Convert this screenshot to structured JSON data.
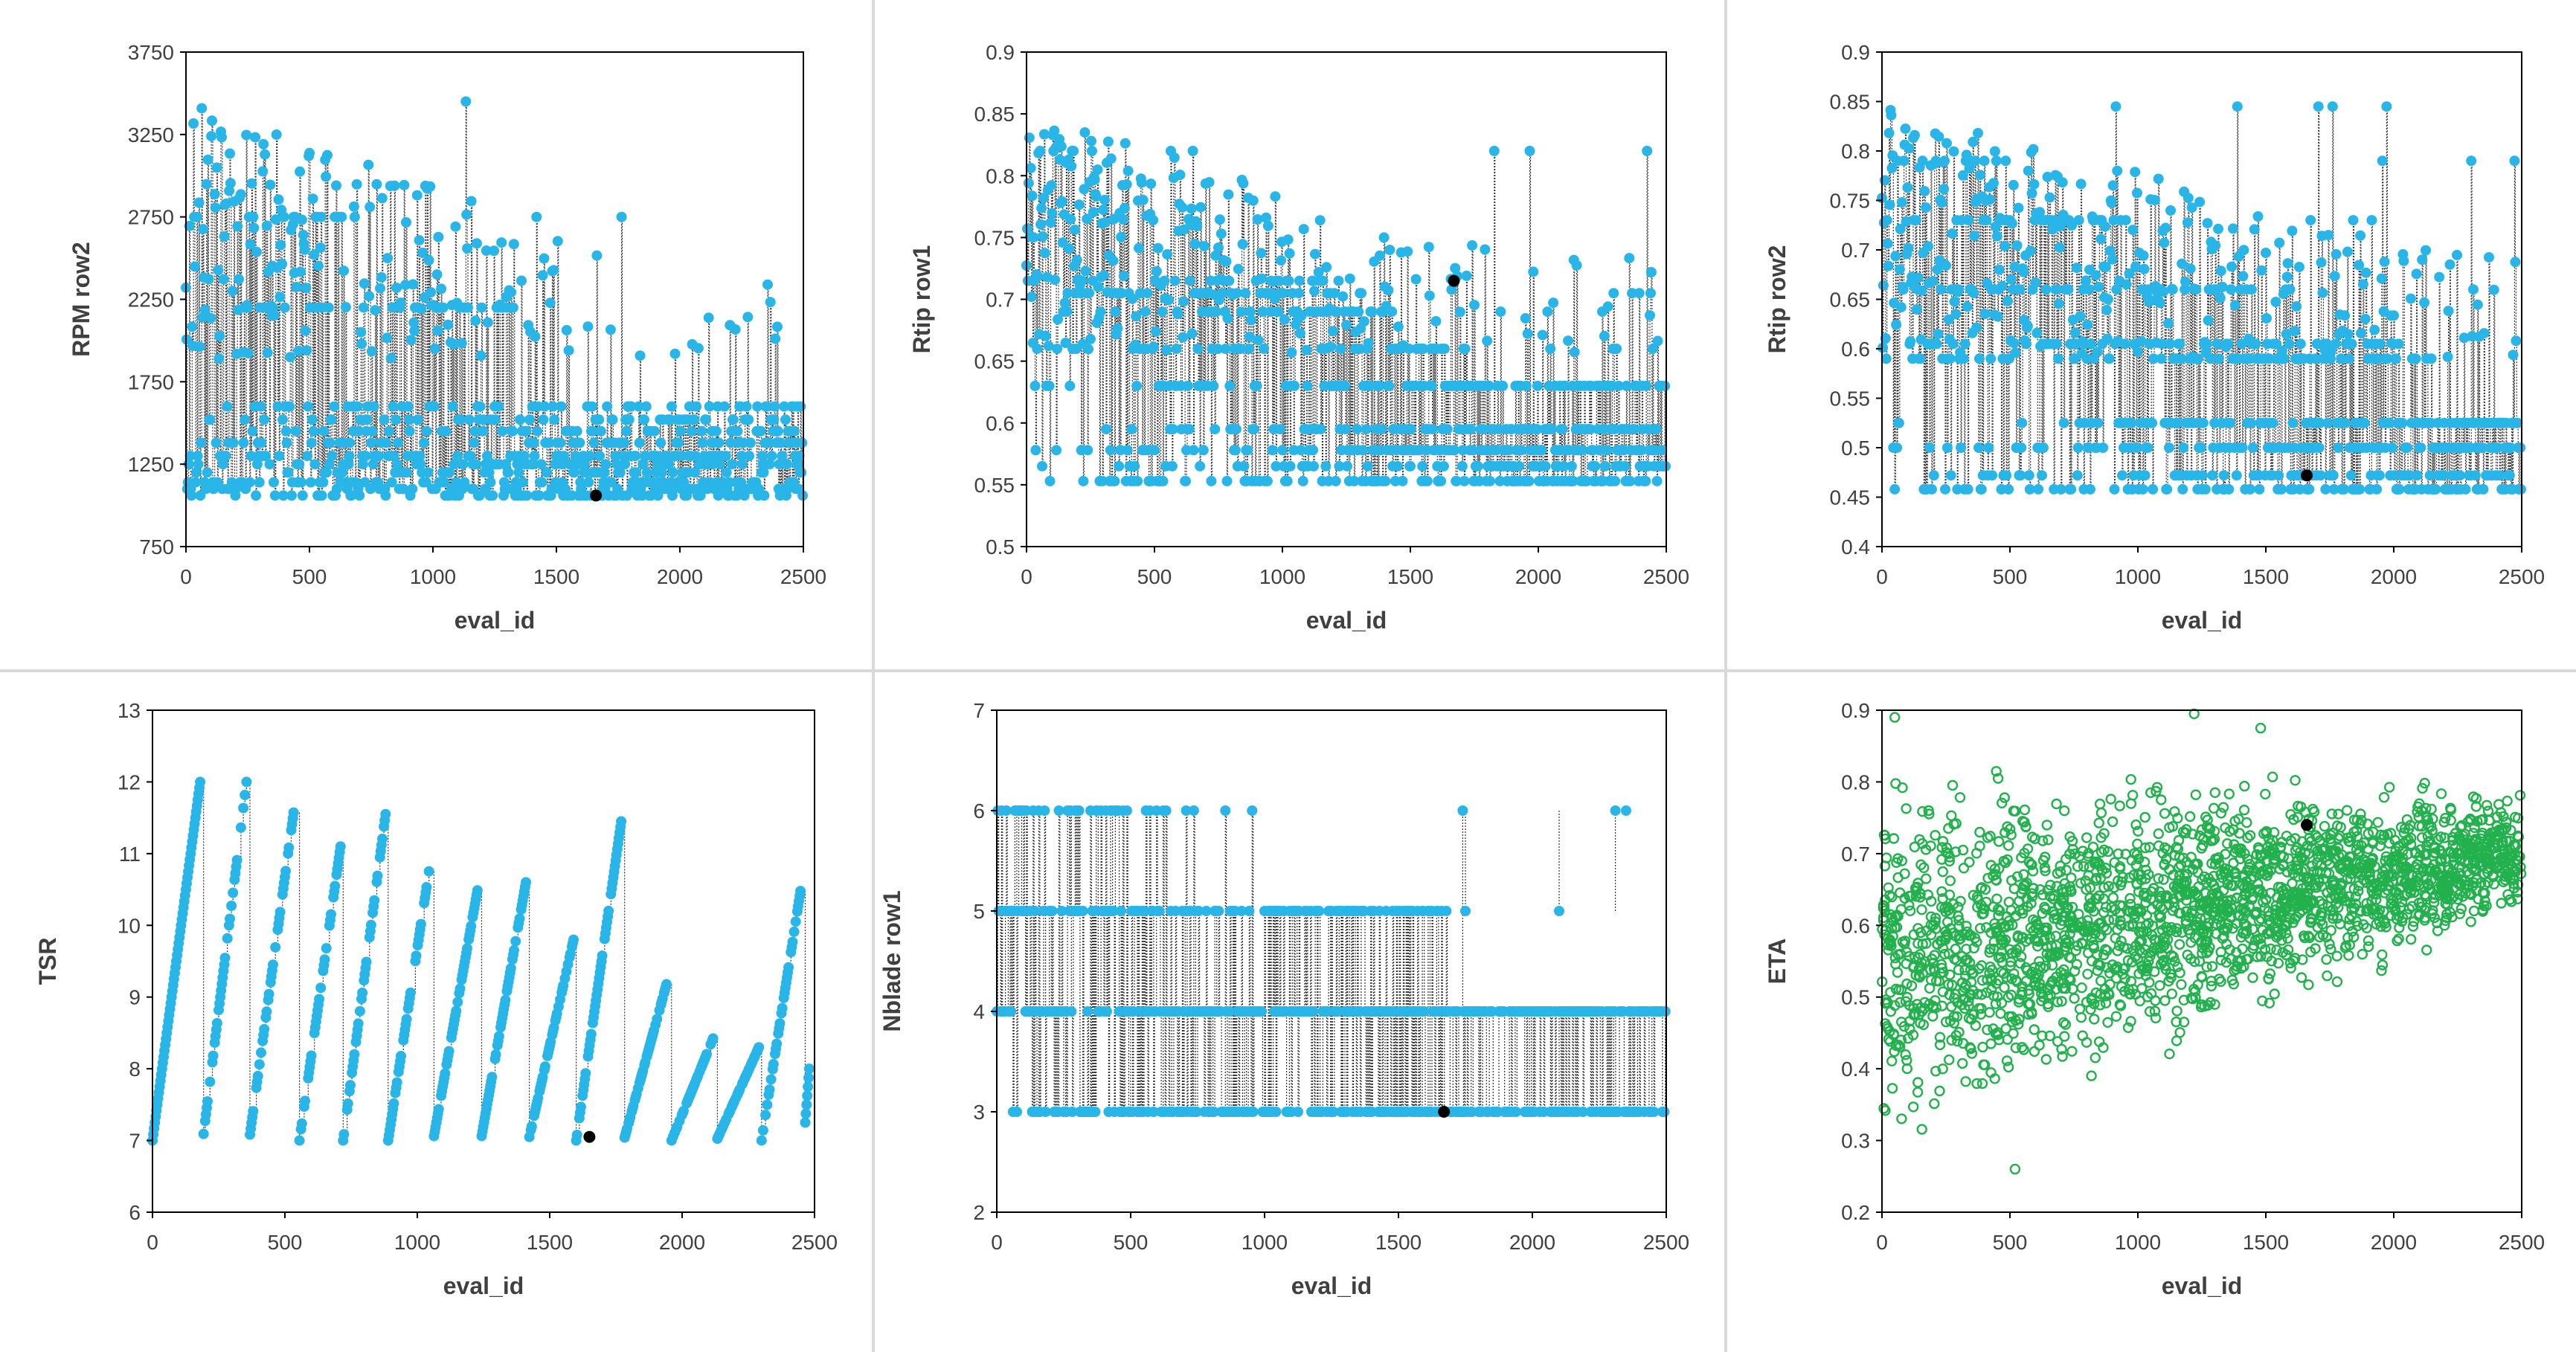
{
  "charts": [
    {
      "type": "scatter",
      "title": "",
      "xlabel": "eval_id",
      "ylabel": "RPM row2",
      "xlim": [
        0,
        2500
      ],
      "ylim": [
        750,
        3750
      ],
      "xticks": [
        0,
        500,
        1000,
        1500,
        2000,
        2500
      ],
      "yticks": [
        750,
        1250,
        1750,
        2250,
        2750,
        3250,
        3750
      ],
      "style": "stem-cyan",
      "color": "#29B5E8",
      "highlight": {
        "x": 1660,
        "y": 1060
      },
      "generator": "levels",
      "params": {
        "levels": [
          1060,
          1100,
          1140,
          1200,
          1250,
          1300,
          1380,
          1450,
          1520,
          1600,
          2200,
          2750,
          3450
        ],
        "upper_fade": 1800,
        "base": 1050,
        "max": 3450,
        "seed": 11
      }
    },
    {
      "type": "scatter",
      "title": "",
      "xlabel": "eval_id",
      "ylabel": "Rtip row1",
      "xlim": [
        0,
        2500
      ],
      "ylim": [
        0.5,
        0.9
      ],
      "xticks": [
        0,
        500,
        1000,
        1500,
        2000,
        2500
      ],
      "yticks": [
        0.5,
        0.55,
        0.6,
        0.65,
        0.7,
        0.75,
        0.8,
        0.85,
        0.9
      ],
      "style": "stem-cyan",
      "color": "#29B5E8",
      "highlight": {
        "x": 1670,
        "y": 0.715
      },
      "generator": "levels",
      "params": {
        "levels": [
          0.553,
          0.565,
          0.578,
          0.595,
          0.63,
          0.66,
          0.69,
          0.705,
          0.715,
          0.82
        ],
        "upper_fade": 1900,
        "base": 0.553,
        "max": 0.85,
        "seed": 23
      }
    },
    {
      "type": "scatter",
      "title": "",
      "xlabel": "eval_id",
      "ylabel": "Rtip row2",
      "xlim": [
        0,
        2500
      ],
      "ylim": [
        0.4,
        0.9
      ],
      "xticks": [
        0,
        500,
        1000,
        1500,
        2000,
        2500
      ],
      "yticks": [
        0.4,
        0.45,
        0.5,
        0.55,
        0.6,
        0.65,
        0.7,
        0.75,
        0.8,
        0.85,
        0.9
      ],
      "style": "stem-cyan",
      "color": "#29B5E8",
      "highlight": {
        "x": 1660,
        "y": 0.472
      },
      "generator": "levels",
      "params": {
        "levels": [
          0.458,
          0.472,
          0.5,
          0.525,
          0.59,
          0.605,
          0.66,
          0.73,
          0.79,
          0.845
        ],
        "upper_fade": 2300,
        "base": 0.455,
        "max": 0.845,
        "seed": 37
      }
    },
    {
      "type": "scatter",
      "title": "",
      "xlabel": "eval_id",
      "ylabel": "TSR",
      "xlim": [
        0,
        2500
      ],
      "ylim": [
        6,
        13
      ],
      "xticks": [
        0,
        500,
        1000,
        1500,
        2000,
        2500
      ],
      "yticks": [
        6,
        7,
        8,
        9,
        10,
        11,
        12,
        13
      ],
      "style": "stem-cyan",
      "color": "#29B5E8",
      "highlight": {
        "x": 1650,
        "y": 7.05
      },
      "generator": "sawtooth",
      "params": {
        "starts": [
          0,
          190,
          365,
          555,
          720,
          890,
          1060,
          1240,
          1420,
          1600,
          1780,
          1960,
          2130,
          2300,
          2460
        ],
        "peaks": [
          12,
          12,
          11.9,
          11.1,
          11.55,
          10.9,
          10.55,
          10.6,
          9.8,
          11.45,
          9.3,
          8.45,
          8.3,
          10.55,
          8.0
        ],
        "base": 7.0,
        "seed": 5
      }
    },
    {
      "type": "scatter",
      "title": "",
      "xlabel": "eval_id",
      "ylabel": "Nblade row1",
      "xlim": [
        0,
        2500
      ],
      "ylim": [
        2,
        7
      ],
      "xticks": [
        0,
        500,
        1000,
        1500,
        2000,
        2500
      ],
      "yticks": [
        2,
        3,
        4,
        5,
        6,
        7
      ],
      "style": "stem-cyan",
      "color": "#29B5E8",
      "highlight": {
        "x": 1670,
        "y": 3
      },
      "generator": "discrete",
      "params": {
        "values": [
          3,
          4,
          5,
          6
        ],
        "seed": 51
      }
    },
    {
      "type": "scatter",
      "title": "",
      "xlabel": "eval_id",
      "ylabel": "ETA",
      "xlim": [
        0,
        2500
      ],
      "ylim": [
        0.2,
        0.9
      ],
      "xticks": [
        0,
        500,
        1000,
        1500,
        2000,
        2500
      ],
      "yticks": [
        0.2,
        0.3,
        0.4,
        0.5,
        0.6,
        0.7,
        0.8,
        0.9
      ],
      "style": "scatter-green",
      "color": "#1DB954",
      "highlight": {
        "x": 1660,
        "y": 0.74
      },
      "generator": "cloud",
      "params": {
        "seed": 77
      }
    }
  ],
  "colors": {
    "points": "#29B5E8",
    "eta": "#22B14C",
    "highlight": "#000000",
    "stem": "#303030",
    "axis": "#000000"
  }
}
